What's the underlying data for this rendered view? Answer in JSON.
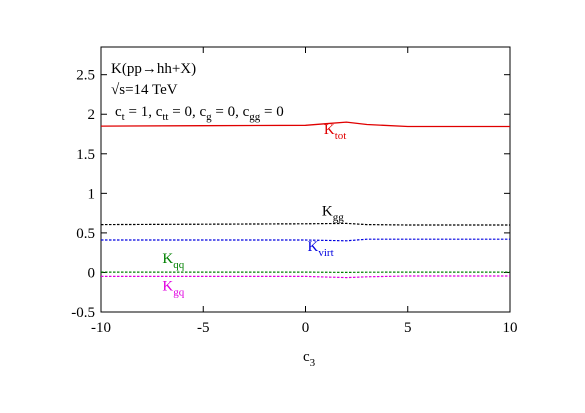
{
  "chart_data": {
    "type": "line",
    "xlabel": "c",
    "xlabel_sub": "3",
    "ylabel": "",
    "xlim": [
      -10,
      10
    ],
    "ylim": [
      -0.5,
      2.85
    ],
    "xticks": [
      -10,
      -5,
      0,
      5,
      10
    ],
    "xtick_labels": [
      "-10",
      "-5",
      "0",
      "5",
      "10"
    ],
    "yticks": [
      -0.5,
      0,
      0.5,
      1,
      1.5,
      2,
      2.5
    ],
    "ytick_labels": [
      "-0.5",
      "0",
      "0.5",
      "1",
      "1.5",
      "2",
      "2.5"
    ],
    "grid": false,
    "annotations": {
      "process": "K(pp→hh+X)",
      "energy": "√s=14 TeV",
      "couplings": [
        {
          "main": "c",
          "sub": "t",
          "rest": " = 1, "
        },
        {
          "main": "c",
          "sub": "tt",
          "rest": " = 0, "
        },
        {
          "main": "c",
          "sub": "g",
          "rest": " = 0, "
        },
        {
          "main": "c",
          "sub": "gg",
          "rest": " = 0"
        }
      ]
    },
    "series": [
      {
        "name": "K",
        "name_sub": "tot",
        "color": "#e00000",
        "style": "solid",
        "x": [
          -10,
          -5,
          0,
          1,
          2,
          3,
          5,
          10
        ],
        "y": [
          1.85,
          1.855,
          1.86,
          1.88,
          1.9,
          1.87,
          1.845,
          1.845
        ],
        "label_at": [
          0.9,
          1.75
        ]
      },
      {
        "name": "K",
        "name_sub": "gg",
        "color": "#000000",
        "style": "dashed",
        "x": [
          -10,
          -5,
          0,
          2,
          3,
          5,
          10
        ],
        "y": [
          0.605,
          0.61,
          0.615,
          0.62,
          0.605,
          0.6,
          0.6
        ],
        "label_at": [
          0.8,
          0.72
        ]
      },
      {
        "name": "K",
        "name_sub": "virt",
        "color": "#0000e0",
        "style": "dashed",
        "x": [
          -10,
          -5,
          0,
          2,
          3,
          5,
          10
        ],
        "y": [
          0.41,
          0.41,
          0.41,
          0.4,
          0.42,
          0.42,
          0.42
        ],
        "label_at": [
          0.1,
          0.27
        ]
      },
      {
        "name": "K",
        "name_sub": "qq",
        "color": "#008000",
        "style": "dashed",
        "x": [
          -10,
          -5,
          0,
          2,
          3,
          5,
          10
        ],
        "y": [
          0.005,
          0.005,
          0.005,
          0.0,
          0.003,
          0.005,
          0.005
        ],
        "label_at": [
          -7.0,
          0.12
        ]
      },
      {
        "name": "K",
        "name_sub": "gq",
        "color": "#e000e0",
        "style": "dashed",
        "x": [
          -10,
          -5,
          0,
          2,
          3,
          5,
          10
        ],
        "y": [
          -0.05,
          -0.05,
          -0.05,
          -0.065,
          -0.055,
          -0.045,
          -0.045
        ],
        "label_at": [
          -7.0,
          -0.23
        ]
      }
    ]
  }
}
